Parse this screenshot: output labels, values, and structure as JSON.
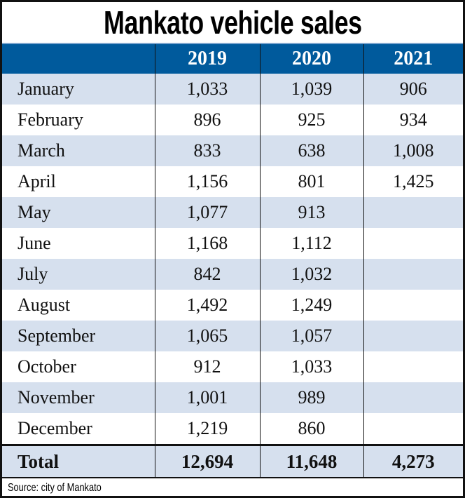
{
  "chart_data": {
    "type": "table",
    "title": "Mankato vehicle sales",
    "columns": [
      "",
      "2019",
      "2020",
      "2021"
    ],
    "rows": [
      [
        "January",
        "1,033",
        "1,039",
        "906"
      ],
      [
        "February",
        "896",
        "925",
        "934"
      ],
      [
        "March",
        "833",
        "638",
        "1,008"
      ],
      [
        "April",
        "1,156",
        "801",
        "1,425"
      ],
      [
        "May",
        "1,077",
        "913",
        ""
      ],
      [
        "June",
        "1,168",
        "1,112",
        ""
      ],
      [
        "July",
        "842",
        "1,032",
        ""
      ],
      [
        "August",
        "1,492",
        "1,249",
        ""
      ],
      [
        "September",
        "1,065",
        "1,057",
        ""
      ],
      [
        "October",
        "912",
        "1,033",
        ""
      ],
      [
        "November",
        "1,001",
        "989",
        ""
      ],
      [
        "December",
        "1,219",
        "860",
        ""
      ]
    ],
    "total": [
      "Total",
      "12,694",
      "11,648",
      "4,273"
    ],
    "source": "Source: city of Mankato",
    "colors": {
      "header": "#005a9c",
      "stripe": "#d6e0ee",
      "border": "#111111"
    }
  }
}
